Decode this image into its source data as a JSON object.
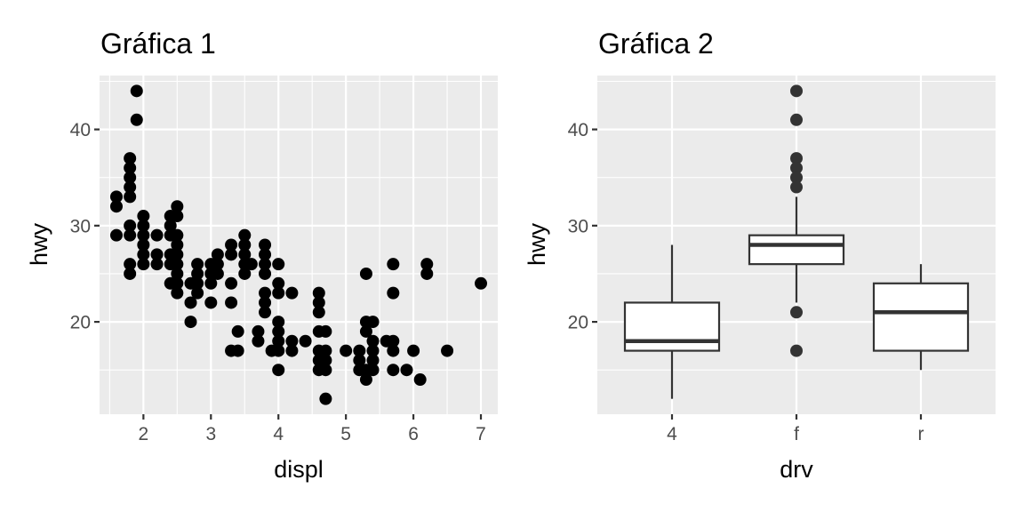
{
  "colors": {
    "panel_bg": "#EBEBEB",
    "grid_major": "#FFFFFF",
    "grid_minor": "#F5F5F5",
    "point": "#000000",
    "box_line": "#333333",
    "outlier": "#333333",
    "tick_label": "#4D4D4D",
    "title": "#000000"
  },
  "chart_data": [
    {
      "type": "scatter",
      "title": "Gráfica 1",
      "xlabel": "displ",
      "ylabel": "hwy",
      "xlim": [
        1.35,
        7.25
      ],
      "ylim": [
        10.4,
        45.6
      ],
      "xticks": [
        2,
        3,
        4,
        5,
        6,
        7
      ],
      "yticks": [
        20,
        30,
        40
      ],
      "grid": true,
      "points": [
        [
          1.6,
          33
        ],
        [
          1.6,
          32
        ],
        [
          1.6,
          29
        ],
        [
          1.8,
          37
        ],
        [
          1.8,
          36
        ],
        [
          1.8,
          35
        ],
        [
          1.8,
          34
        ],
        [
          1.8,
          33
        ],
        [
          1.8,
          30
        ],
        [
          1.8,
          29
        ],
        [
          1.8,
          26
        ],
        [
          1.8,
          25
        ],
        [
          1.9,
          44
        ],
        [
          1.9,
          41
        ],
        [
          2.0,
          31
        ],
        [
          2.0,
          30
        ],
        [
          2.0,
          29
        ],
        [
          2.0,
          28
        ],
        [
          2.0,
          27
        ],
        [
          2.0,
          26
        ],
        [
          2.2,
          29
        ],
        [
          2.2,
          27
        ],
        [
          2.2,
          26
        ],
        [
          2.4,
          31
        ],
        [
          2.4,
          30
        ],
        [
          2.4,
          29
        ],
        [
          2.4,
          27
        ],
        [
          2.4,
          26
        ],
        [
          2.4,
          24
        ],
        [
          2.5,
          32
        ],
        [
          2.5,
          31
        ],
        [
          2.5,
          29
        ],
        [
          2.5,
          28
        ],
        [
          2.5,
          27
        ],
        [
          2.5,
          26
        ],
        [
          2.5,
          25
        ],
        [
          2.5,
          24
        ],
        [
          2.5,
          23
        ],
        [
          2.7,
          24
        ],
        [
          2.7,
          22
        ],
        [
          2.7,
          20
        ],
        [
          2.8,
          26
        ],
        [
          2.8,
          25
        ],
        [
          2.8,
          24
        ],
        [
          2.8,
          23
        ],
        [
          3.0,
          26
        ],
        [
          3.0,
          25
        ],
        [
          3.0,
          24
        ],
        [
          3.0,
          22
        ],
        [
          3.1,
          27
        ],
        [
          3.1,
          26
        ],
        [
          3.1,
          25
        ],
        [
          3.3,
          28
        ],
        [
          3.3,
          27
        ],
        [
          3.3,
          24
        ],
        [
          3.3,
          22
        ],
        [
          3.3,
          17
        ],
        [
          3.4,
          19
        ],
        [
          3.4,
          17
        ],
        [
          3.5,
          29
        ],
        [
          3.5,
          28
        ],
        [
          3.5,
          27
        ],
        [
          3.5,
          26
        ],
        [
          3.5,
          25
        ],
        [
          3.6,
          26
        ],
        [
          3.7,
          19
        ],
        [
          3.7,
          18
        ],
        [
          3.8,
          28
        ],
        [
          3.8,
          27
        ],
        [
          3.8,
          26
        ],
        [
          3.8,
          25
        ],
        [
          3.8,
          23
        ],
        [
          3.8,
          22
        ],
        [
          3.8,
          21
        ],
        [
          3.9,
          17
        ],
        [
          4.0,
          26
        ],
        [
          4.0,
          24
        ],
        [
          4.0,
          23
        ],
        [
          4.0,
          20
        ],
        [
          4.0,
          19
        ],
        [
          4.0,
          18
        ],
        [
          4.0,
          17
        ],
        [
          4.0,
          15
        ],
        [
          4.2,
          23
        ],
        [
          4.2,
          18
        ],
        [
          4.2,
          17
        ],
        [
          4.4,
          18
        ],
        [
          4.6,
          23
        ],
        [
          4.6,
          22
        ],
        [
          4.6,
          21
        ],
        [
          4.6,
          19
        ],
        [
          4.6,
          17
        ],
        [
          4.6,
          16
        ],
        [
          4.6,
          15
        ],
        [
          4.7,
          19
        ],
        [
          4.7,
          17
        ],
        [
          4.7,
          16
        ],
        [
          4.7,
          15
        ],
        [
          4.7,
          12
        ],
        [
          5.0,
          17
        ],
        [
          5.2,
          17
        ],
        [
          5.2,
          16
        ],
        [
          5.2,
          15
        ],
        [
          5.3,
          25
        ],
        [
          5.3,
          20
        ],
        [
          5.3,
          19
        ],
        [
          5.3,
          15
        ],
        [
          5.3,
          14
        ],
        [
          5.4,
          20
        ],
        [
          5.4,
          18
        ],
        [
          5.4,
          17
        ],
        [
          5.4,
          16
        ],
        [
          5.4,
          15
        ],
        [
          5.6,
          18
        ],
        [
          5.7,
          26
        ],
        [
          5.7,
          23
        ],
        [
          5.7,
          18
        ],
        [
          5.7,
          17
        ],
        [
          5.7,
          15
        ],
        [
          5.9,
          15
        ],
        [
          6.0,
          17
        ],
        [
          6.1,
          14
        ],
        [
          6.2,
          26
        ],
        [
          6.2,
          25
        ],
        [
          6.5,
          17
        ],
        [
          7.0,
          24
        ]
      ]
    },
    {
      "type": "boxplot",
      "title": "Gráfica 2",
      "xlabel": "drv",
      "ylabel": "hwy",
      "ylim": [
        10.4,
        45.6
      ],
      "yticks": [
        20,
        30,
        40
      ],
      "categories": [
        "4",
        "f",
        "r"
      ],
      "grid": true,
      "boxes": [
        {
          "category": "4",
          "whisker_low": 12,
          "q1": 17,
          "median": 18,
          "q3": 22,
          "whisker_high": 28,
          "outliers": []
        },
        {
          "category": "f",
          "whisker_low": 22,
          "q1": 26,
          "median": 28,
          "q3": 29,
          "whisker_high": 33,
          "outliers": [
            44,
            41,
            37,
            36,
            35,
            34,
            21,
            17
          ]
        },
        {
          "category": "r",
          "whisker_low": 15,
          "q1": 17,
          "median": 21,
          "q3": 24,
          "whisker_high": 26,
          "outliers": []
        }
      ]
    }
  ]
}
